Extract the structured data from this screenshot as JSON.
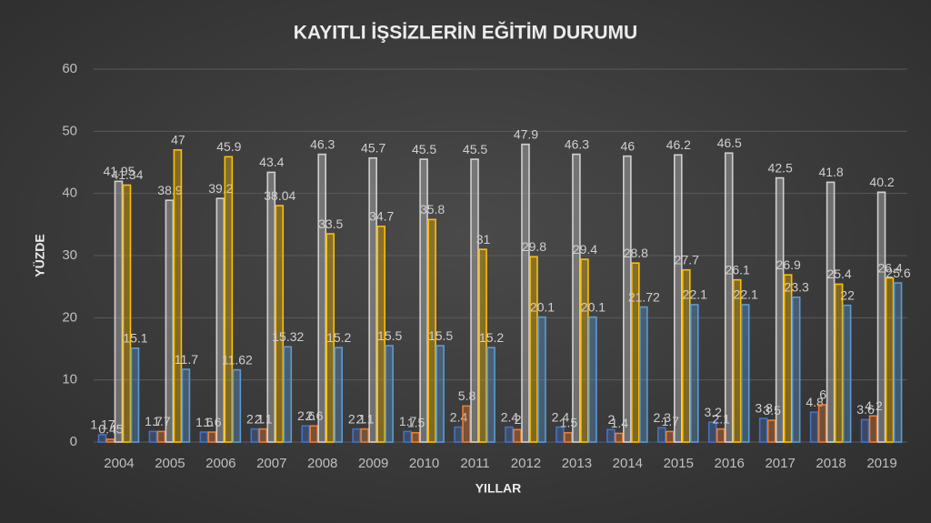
{
  "chart_data": {
    "type": "bar",
    "title": "KAYITLI İŞSİZLERİN EĞİTİM DURUMU",
    "x_label": "YILLAR",
    "y_label": "YÜZDE",
    "categories": [
      "2004",
      "2005",
      "2006",
      "2007",
      "2008",
      "2009",
      "2010",
      "2011",
      "2012",
      "2013",
      "2014",
      "2015",
      "2016",
      "2017",
      "2018",
      "2019"
    ],
    "series": [
      {
        "color": "#4472c4",
        "values": [
          1.17,
          1.7,
          1.6,
          2.1,
          2.6,
          2.1,
          1.7,
          2.4,
          2.4,
          2.4,
          2,
          2.3,
          3.2,
          3.8,
          4.8,
          3.6
        ]
      },
      {
        "color": "#ed7d31",
        "values": [
          0.45,
          1.7,
          1.6,
          2.1,
          2.6,
          2.1,
          1.5,
          5.8,
          2,
          1.5,
          1.4,
          1.7,
          2.1,
          3.5,
          6,
          4.2
        ]
      },
      {
        "color": "#d0d0d0",
        "values": [
          41.95,
          38.9,
          39.2,
          43.4,
          46.3,
          45.7,
          45.5,
          45.5,
          47.9,
          46.3,
          46,
          46.2,
          46.5,
          42.5,
          41.8,
          40.2
        ]
      },
      {
        "color": "#ffc000",
        "values": [
          41.34,
          47,
          45.9,
          38.04,
          33.5,
          34.7,
          35.8,
          31,
          29.8,
          29.4,
          28.8,
          27.7,
          26.1,
          26.9,
          25.4,
          26.4
        ]
      },
      {
        "color": "#5b9bd5",
        "values": [
          15.1,
          11.7,
          11.62,
          15.32,
          15.2,
          15.5,
          15.5,
          15.2,
          20.1,
          20.1,
          21.72,
          22.1,
          22.1,
          23.3,
          22,
          25.6
        ]
      }
    ],
    "ylim": [
      0,
      60
    ],
    "yticks": [
      0,
      10,
      20,
      30,
      40,
      50,
      60
    ],
    "grid": true
  }
}
